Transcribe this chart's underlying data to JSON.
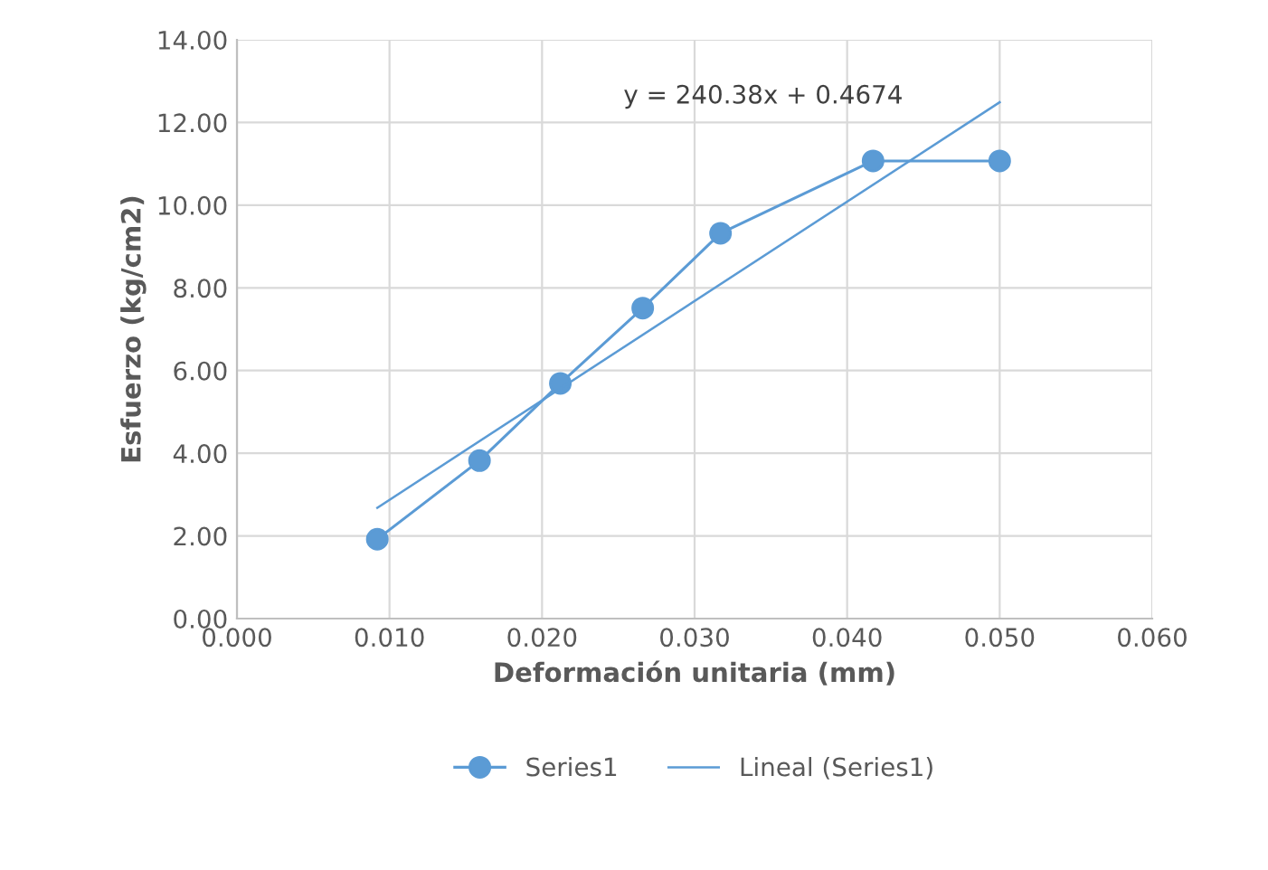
{
  "chart_data": {
    "type": "line",
    "xlabel": "Deformación unitaria (mm)",
    "ylabel": "Esfuerzo (kg/cm2)",
    "series": [
      {
        "name": "Series1",
        "color": "#5b9bd5",
        "marker": "circle",
        "x": [
          0.0092,
          0.0159,
          0.0212,
          0.0266,
          0.0317,
          0.0417,
          0.05
        ],
        "values": [
          1.92,
          3.82,
          5.69,
          7.51,
          9.32,
          11.07,
          11.07
        ]
      },
      {
        "name": "Lineal (Series1)",
        "color": "#5b9bd5",
        "marker": "none",
        "x": [
          0.0092,
          0.05
        ],
        "values": [
          2.68,
          12.49
        ]
      }
    ],
    "annotations": [
      "y = 240.38x + 0.4674"
    ],
    "xlim": [
      0,
      0.06
    ],
    "xticks": [
      {
        "value": 0,
        "label": "0.000"
      },
      {
        "value": 0.01,
        "label": "0.010"
      },
      {
        "value": 0.02,
        "label": "0.020"
      },
      {
        "value": 0.03,
        "label": "0.030"
      },
      {
        "value": 0.04,
        "label": "0.040"
      },
      {
        "value": 0.05,
        "label": "0.050"
      },
      {
        "value": 0.06,
        "label": "0.060"
      }
    ],
    "ylim": [
      0,
      14
    ],
    "yticks": [
      {
        "value": 0,
        "label": "0.00"
      },
      {
        "value": 2,
        "label": "2.00"
      },
      {
        "value": 4,
        "label": "4.00"
      },
      {
        "value": 6,
        "label": "6.00"
      },
      {
        "value": 8,
        "label": "8.00"
      },
      {
        "value": 10,
        "label": "10.00"
      },
      {
        "value": 12,
        "label": "12.00"
      },
      {
        "value": 14,
        "label": "14.00"
      }
    ],
    "grid": true,
    "legend": "bottom"
  }
}
